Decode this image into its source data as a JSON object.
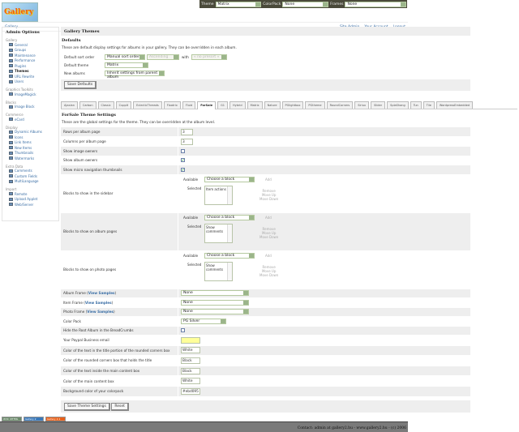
{
  "logo": {
    "text": "Gallery"
  },
  "topbar": [
    {
      "label": "Theme",
      "value": "Matrix"
    },
    {
      "label": "ColorPack",
      "value": "None"
    },
    {
      "label": "Frames",
      "value": "None"
    }
  ],
  "breadcrumb": {
    "root": "Gallery",
    "links": [
      "Site Admin",
      "Your Account",
      "Logout"
    ]
  },
  "sidebar": {
    "title": "Admin Options",
    "groups": [
      {
        "name": "Gallery",
        "items": [
          "General",
          "Groups",
          "Maintenance",
          "Performance",
          "Plugins",
          "Themes",
          "URL Rewrite",
          "Users"
        ],
        "current": "Themes"
      },
      {
        "name": "Graphics Toolkits",
        "items": [
          "ImageMagick"
        ]
      },
      {
        "name": "Blocks",
        "items": [
          "Image Block"
        ]
      },
      {
        "name": "Commerce",
        "items": [
          "eCard"
        ]
      },
      {
        "name": "Display",
        "items": [
          "Dynamic Albums",
          "Icons",
          "Link Items",
          "New Items",
          "Thumbnails",
          "Watermarks"
        ]
      },
      {
        "name": "Extra Data",
        "items": [
          "Comments",
          "Custom Fields",
          "MultiLanguage"
        ]
      },
      {
        "name": "Import",
        "items": [
          "Remote",
          "Upload Applet",
          "Web/Server"
        ]
      }
    ]
  },
  "main": {
    "title": "Gallery Themes",
    "defaults_title": "Defaults",
    "defaults_desc": "These are default display settings for albums in your gallery. They can be overridden in each album.",
    "sort_label": "Default sort order",
    "sort_value": "Manual sort order",
    "sort_dir": "Ascending",
    "with_label": "with",
    "with_value": "« no presort »",
    "theme_label": "Default theme",
    "theme_value": "Matrix",
    "new_label": "New albums",
    "new_value": "Inherit settings from parent album",
    "save_defaults": "Save Defaults"
  },
  "tabs": [
    "Ajaxian",
    "Carbon",
    "Classic",
    "CuppIt",
    "EclecticThreads",
    "Floatrix",
    "Fluid",
    "ForSale",
    "G1",
    "Hybrid",
    "Matrix",
    "Nature",
    "PGlightbox",
    "PGtheme",
    "RoundCorners",
    "Siriux",
    "Slider",
    "SplaShang",
    "Tun",
    "Tile",
    "WordpressEmbedded"
  ],
  "active_tab": "ForSale",
  "theme": {
    "title": "ForSale Theme Settings",
    "desc": "These are the global settings for the theme. They can be overridden at the album level.",
    "block_labels": {
      "available": "Available",
      "selected": "Selected",
      "choose": "Choose a block",
      "add": "Add",
      "remove": "Remove",
      "up": "Move Up",
      "down": "Move Down"
    },
    "view_samples": "View Samples",
    "rows": [
      {
        "label": "Rows per album page",
        "type": "text",
        "value": "3"
      },
      {
        "label": "Columns per album page",
        "type": "text",
        "value": "3"
      },
      {
        "label": "Show image owners",
        "type": "check",
        "checked": false
      },
      {
        "label": "Show album owners",
        "type": "check",
        "checked": true
      },
      {
        "label": "Show micro navigation thumbnails",
        "type": "check",
        "checked": true
      },
      {
        "label": "Blocks to show in the sidebar",
        "type": "blocks",
        "selected": "Item actions"
      },
      {
        "label": "Blocks to show on album pages",
        "type": "blocks",
        "selected": "Show comments"
      },
      {
        "label": "Blocks to show on photo pages",
        "type": "blocks",
        "selected": "Show comments"
      },
      {
        "label": "Album Frame",
        "type": "select",
        "value": "None",
        "samples": true
      },
      {
        "label": "Item Frame",
        "type": "select",
        "value": "None",
        "samples": true
      },
      {
        "label": "Photo Frame",
        "type": "select",
        "value": "None",
        "samples": true
      },
      {
        "label": "Color Pack",
        "type": "select",
        "value": "PG Silver",
        "short": true
      },
      {
        "label": "Hide the Root Album in the BreadCrumbs",
        "type": "check",
        "checked": false
      },
      {
        "label": "Your Paypal Business email",
        "type": "text",
        "value": "",
        "yellow": true
      },
      {
        "label": "Color of the text in the title portion of the rounded corners box",
        "type": "text",
        "value": "White"
      },
      {
        "label": "Color of the rounded corners box that holds the title",
        "type": "text",
        "value": "Black"
      },
      {
        "label": "Color of the text inside the main content box",
        "type": "text",
        "value": "Black"
      },
      {
        "label": "Color of the main content box",
        "type": "text",
        "value": "White"
      },
      {
        "label": "Background color of your colorpack",
        "type": "text",
        "value": "#ebd095"
      }
    ],
    "save": "Save Theme Settings",
    "reset": "Reset"
  },
  "badges": [
    "W3C XHTML 1.0",
    "Gallery 2",
    "Gallery 2.1"
  ],
  "footer": "Contact: admin at gallery2.hu - www.gallery2.hu - (c) 2006"
}
